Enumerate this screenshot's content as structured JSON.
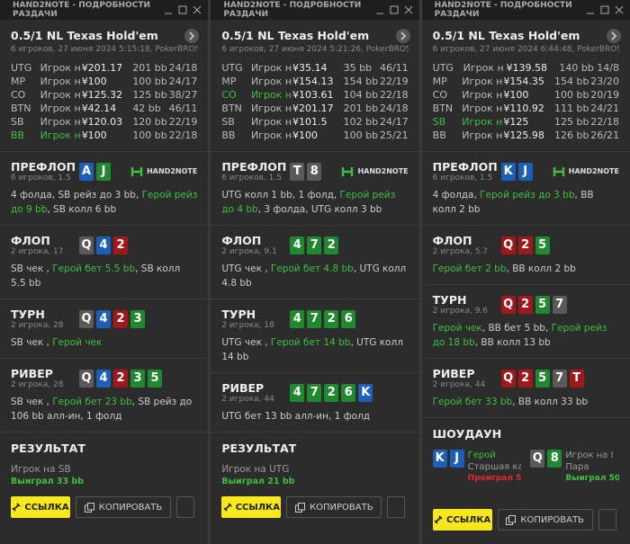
{
  "panels": [
    {
      "window_title": "HAND2NOTE - ПОДРОБНОСТИ РАЗДАЧИ",
      "hand_title": "0.5/1 NL Texas Hold'em",
      "subtitle": "6 игроков, 27 июня 2024 5:15:18, PokerBROS",
      "players": [
        {
          "pos": "UTG",
          "name": "Игрок н",
          "stack": "¥201.17",
          "bb": "201 bb",
          "stats": "24/18"
        },
        {
          "pos": "MP",
          "name": "Игрок н",
          "stack": "¥100",
          "bb": "100 bb",
          "stats": "24/17"
        },
        {
          "pos": "CO",
          "name": "Игрок н",
          "stack": "¥125.32",
          "bb": "125 bb",
          "stats": "38/27"
        },
        {
          "pos": "BTN",
          "name": "Игрок н",
          "stack": "¥42.14",
          "bb": "42 bb",
          "stats": "46/11"
        },
        {
          "pos": "SB",
          "name": "Игрок н",
          "stack": "¥120.03",
          "bb": "120 bb",
          "stats": "22/19"
        },
        {
          "pos": "BB",
          "name": "Игрок н",
          "stack": "¥100",
          "bb": "100 bb",
          "stats": "22/18",
          "hero": true
        }
      ],
      "streets": [
        {
          "name": "ПРЕФЛОП",
          "info": "6 игроков, 1.5",
          "logo": "HAND2NOTE",
          "cards": [
            {
              "rank": "A",
              "color": "#1d5fb6"
            },
            {
              "rank": "J",
              "color": "#20892f"
            }
          ],
          "actions": [
            {
              "text": "4 фолда, SB рейз до 3 bb, "
            },
            {
              "text": "Герой рейз до 9 bb",
              "hero": true
            },
            {
              "text": ", SB колл 6 bb"
            }
          ]
        },
        {
          "name": "ФЛОП",
          "info": "2 игрока, 17",
          "cards": [
            {
              "rank": "Q",
              "color": "#5a5a5a"
            },
            {
              "rank": "4",
              "color": "#1d5fb6"
            },
            {
              "rank": "2",
              "color": "#a0181b"
            }
          ],
          "actions": [
            {
              "text": "SB чек , "
            },
            {
              "text": "Герой бет 5.5 bb",
              "hero": true
            },
            {
              "text": ", SB колл 5.5 bb"
            }
          ]
        },
        {
          "name": "ТУРН",
          "info": "2 игрока, 28",
          "cards": [
            {
              "rank": "Q",
              "color": "#5a5a5a"
            },
            {
              "rank": "4",
              "color": "#1d5fb6"
            },
            {
              "rank": "2",
              "color": "#a0181b"
            },
            {
              "rank": "3",
              "color": "#20892f"
            }
          ],
          "actions": [
            {
              "text": "SB чек , "
            },
            {
              "text": "Герой чек",
              "hero": true
            }
          ]
        },
        {
          "name": "РИВЕР",
          "info": "2 игрока, 28",
          "cards": [
            {
              "rank": "Q",
              "color": "#5a5a5a"
            },
            {
              "rank": "4",
              "color": "#1d5fb6"
            },
            {
              "rank": "2",
              "color": "#a0181b"
            },
            {
              "rank": "3",
              "color": "#20892f"
            },
            {
              "rank": "5",
              "color": "#20892f"
            }
          ],
          "actions": [
            {
              "text": "SB чек , "
            },
            {
              "text": "Герой бет 23 bb",
              "hero": true
            },
            {
              "text": ", SB рейз до 106 bb алл-ин, 1 фолд"
            }
          ]
        }
      ],
      "result": {
        "title": "РЕЗУЛЬТАТ",
        "winner": "Игрок на SB",
        "won": "Выиграл 33 bb"
      },
      "buttons": {
        "link": "ССЫЛКА",
        "copy": "КОПИРОВАТЬ"
      }
    },
    {
      "window_title": "HAND2NOTE - ПОДРОБНОСТИ РАЗДАЧИ",
      "hand_title": "0.5/1 NL Texas Hold'em",
      "subtitle": "6 игроков, 27 июня 2024 5:21:26, PokerBROS",
      "players": [
        {
          "pos": "UTG",
          "name": "Игрок н",
          "stack": "¥35.14",
          "bb": "35 bb",
          "stats": "46/11"
        },
        {
          "pos": "MP",
          "name": "Игрок н",
          "stack": "¥154.13",
          "bb": "154 bb",
          "stats": "22/19"
        },
        {
          "pos": "CO",
          "name": "Игрок на",
          "stack": "¥103.61",
          "bb": "104 bb",
          "stats": "22/18",
          "hero": true
        },
        {
          "pos": "BTN",
          "name": "Игрок н",
          "stack": "¥201.17",
          "bb": "201 bb",
          "stats": "24/18"
        },
        {
          "pos": "SB",
          "name": "Игрок н",
          "stack": "¥101.5",
          "bb": "102 bb",
          "stats": "24/17"
        },
        {
          "pos": "BB",
          "name": "Игрок н",
          "stack": "¥100",
          "bb": "100 bb",
          "stats": "25/21"
        }
      ],
      "streets": [
        {
          "name": "ПРЕФЛОП",
          "info": "6 игроков, 1.5",
          "logo": "HAND2NOTE",
          "cards": [
            {
              "rank": "T",
              "color": "#5a5a5a"
            },
            {
              "rank": "8",
              "color": "#5a5a5a"
            }
          ],
          "actions": [
            {
              "text": "UTG колл 1 bb, 1 фолд, "
            },
            {
              "text": "Герой рейз до 4 bb",
              "hero": true
            },
            {
              "text": ", 3 фолда, UTG колл 3 bb"
            }
          ]
        },
        {
          "name": "ФЛОП",
          "info": "2 игрока, 9.1",
          "cards": [
            {
              "rank": "4",
              "color": "#20892f"
            },
            {
              "rank": "7",
              "color": "#20892f"
            },
            {
              "rank": "2",
              "color": "#20892f"
            }
          ],
          "actions": [
            {
              "text": "UTG чек , "
            },
            {
              "text": "Герой бет 4.8 bb",
              "hero": true
            },
            {
              "text": ", UTG колл 4.8 bb"
            }
          ]
        },
        {
          "name": "ТУРН",
          "info": "2 игрока, 18",
          "cards": [
            {
              "rank": "4",
              "color": "#20892f"
            },
            {
              "rank": "7",
              "color": "#20892f"
            },
            {
              "rank": "2",
              "color": "#20892f"
            },
            {
              "rank": "6",
              "color": "#20892f"
            }
          ],
          "actions": [
            {
              "text": "UTG чек , "
            },
            {
              "text": "Герой бет 14 bb",
              "hero": true
            },
            {
              "text": ", UTG колл 14 bb"
            }
          ]
        },
        {
          "name": "РИВЕР",
          "info": "2 игрока, 44",
          "cards": [
            {
              "rank": "4",
              "color": "#20892f"
            },
            {
              "rank": "7",
              "color": "#20892f"
            },
            {
              "rank": "2",
              "color": "#20892f"
            },
            {
              "rank": "6",
              "color": "#20892f"
            },
            {
              "rank": "K",
              "color": "#1d5fb6"
            }
          ],
          "actions": [
            {
              "text": "UTG бет 13 bb алл-ин, 1 фолд"
            }
          ]
        }
      ],
      "result": {
        "title": "РЕЗУЛЬТАТ",
        "winner": "Игрок на UTG",
        "won": "Выиграл 21 bb"
      },
      "buttons": {
        "link": "ССЫЛКА",
        "copy": "КОПИРОВАТЬ"
      }
    },
    {
      "window_title": "HAND2NOTE - ПОДРОБНОСТИ РАЗДАЧИ",
      "hand_title": "0.5/1 NL Texas Hold'em",
      "subtitle": "6 игроков, 27 июня 2024 6:44:48, PokerBROS",
      "players": [
        {
          "pos": "UTG",
          "name": "Игрок н",
          "stack": "¥139.58",
          "bb": "140 bb",
          "stats": "14/8"
        },
        {
          "pos": "MP",
          "name": "Игрок н",
          "stack": "¥154.35",
          "bb": "154 bb",
          "stats": "23/20"
        },
        {
          "pos": "CO",
          "name": "Игрок н",
          "stack": "¥100",
          "bb": "100 bb",
          "stats": "20/19"
        },
        {
          "pos": "BTN",
          "name": "Игрок н",
          "stack": "¥110.92",
          "bb": "111 bb",
          "stats": "24/21"
        },
        {
          "pos": "SB",
          "name": "Игрок н",
          "stack": "¥125",
          "bb": "125 bb",
          "stats": "22/18",
          "hero": true
        },
        {
          "pos": "BB",
          "name": "Игрок н",
          "stack": "¥125.98",
          "bb": "126 bb",
          "stats": "26/21"
        }
      ],
      "streets": [
        {
          "name": "ПРЕФЛОП",
          "info": "6 игроков, 1.5",
          "logo": "HAND2NOTE",
          "cards": [
            {
              "rank": "K",
              "color": "#1d5fb6"
            },
            {
              "rank": "J",
              "color": "#1d5fb6"
            }
          ],
          "actions": [
            {
              "text": "4 фолда, "
            },
            {
              "text": "Герой рейз до 3 bb",
              "hero": true
            },
            {
              "text": ", BB колл 2 bb"
            }
          ]
        },
        {
          "name": "ФЛОП",
          "info": "2 игрока, 5.7",
          "cards": [
            {
              "rank": "Q",
              "color": "#a0181b"
            },
            {
              "rank": "2",
              "color": "#a0181b"
            },
            {
              "rank": "5",
              "color": "#20892f"
            }
          ],
          "actions": [
            {
              "text": "Герой бет 2 bb",
              "hero": true
            },
            {
              "text": ", BB колл 2 bb"
            }
          ]
        },
        {
          "name": "ТУРН",
          "info": "2 игрока, 9.6",
          "cards": [
            {
              "rank": "Q",
              "color": "#a0181b"
            },
            {
              "rank": "2",
              "color": "#a0181b"
            },
            {
              "rank": "5",
              "color": "#20892f"
            },
            {
              "rank": "7",
              "color": "#5a5a5a"
            }
          ],
          "actions": [
            {
              "text": "Герой чек",
              "hero": true
            },
            {
              "text": ", BB бет 5 bb, "
            },
            {
              "text": "Герой рейз до 18 bb",
              "hero": true
            },
            {
              "text": ", BB колл 13 bb"
            }
          ]
        },
        {
          "name": "РИВЕР",
          "info": "2 игрока, 44",
          "cards": [
            {
              "rank": "Q",
              "color": "#a0181b"
            },
            {
              "rank": "2",
              "color": "#a0181b"
            },
            {
              "rank": "5",
              "color": "#20892f"
            },
            {
              "rank": "7",
              "color": "#5a5a5a"
            },
            {
              "rank": "T",
              "color": "#a0181b"
            }
          ],
          "actions": [
            {
              "text": "Герой бет 33 bb",
              "hero": true
            },
            {
              "text": ", BB колл 33 bb"
            }
          ]
        }
      ],
      "showdown": {
        "title": "ШОУДАУН",
        "hands": [
          {
            "cards": [
              {
                "rank": "K",
                "color": "#1d5fb6"
              },
              {
                "rank": "J",
                "color": "#1d5fb6"
              }
            ],
            "name": "Герой",
            "hero": true,
            "hand": "Старшая ка",
            "outcome": "Проиграл 5(",
            "won": false
          },
          {
            "cards": [
              {
                "rank": "Q",
                "color": "#5a5a5a"
              },
              {
                "rank": "8",
                "color": "#20892f"
              }
            ],
            "name": "Игрок на I",
            "hand": "Пара",
            "outcome": "Выиграл 50",
            "won": true
          }
        ]
      },
      "buttons": {
        "link": "ССЫЛКА",
        "copy": "КОПИРОВАТЬ"
      }
    }
  ]
}
